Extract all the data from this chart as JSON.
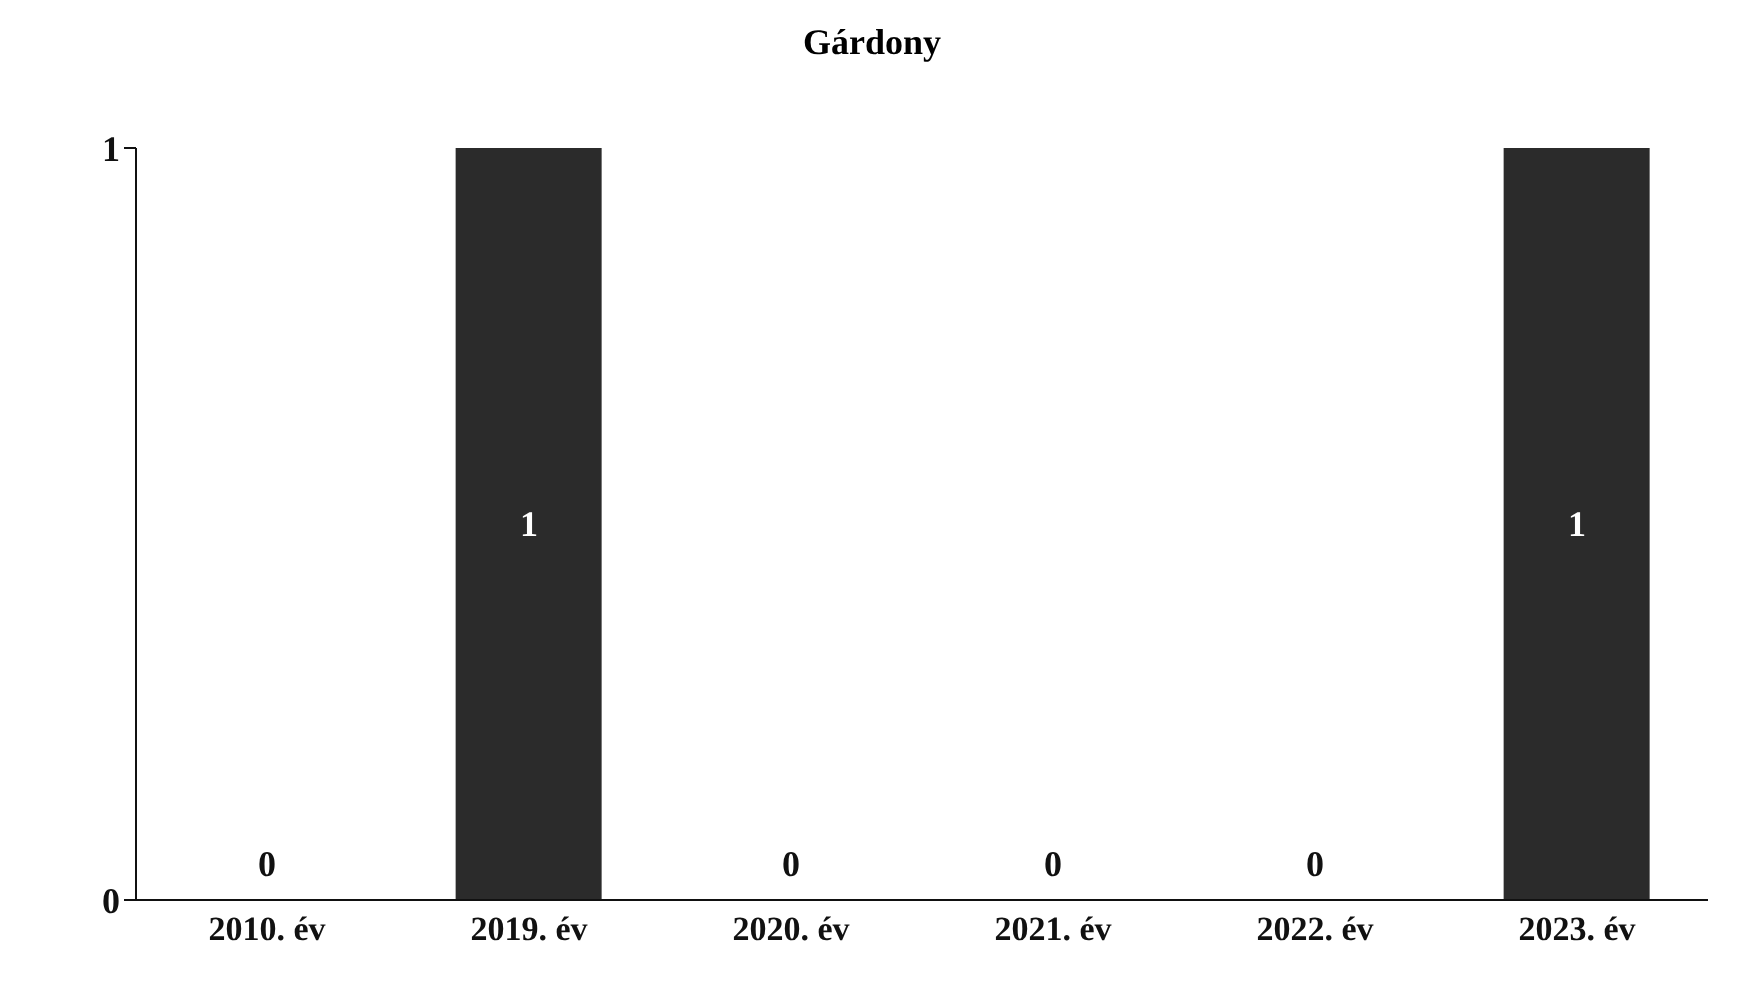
{
  "chart_data": {
    "type": "bar",
    "title": "Gárdony",
    "categories": [
      "2010. év",
      "2019. év",
      "2020. év",
      "2021. év",
      "2022. év",
      "2023. év"
    ],
    "values": [
      0,
      1,
      0,
      0,
      0,
      1
    ],
    "color": "#2b2b2b",
    "ylim": [
      0,
      1
    ],
    "yticks": [
      0,
      1
    ],
    "data_labels": true
  }
}
